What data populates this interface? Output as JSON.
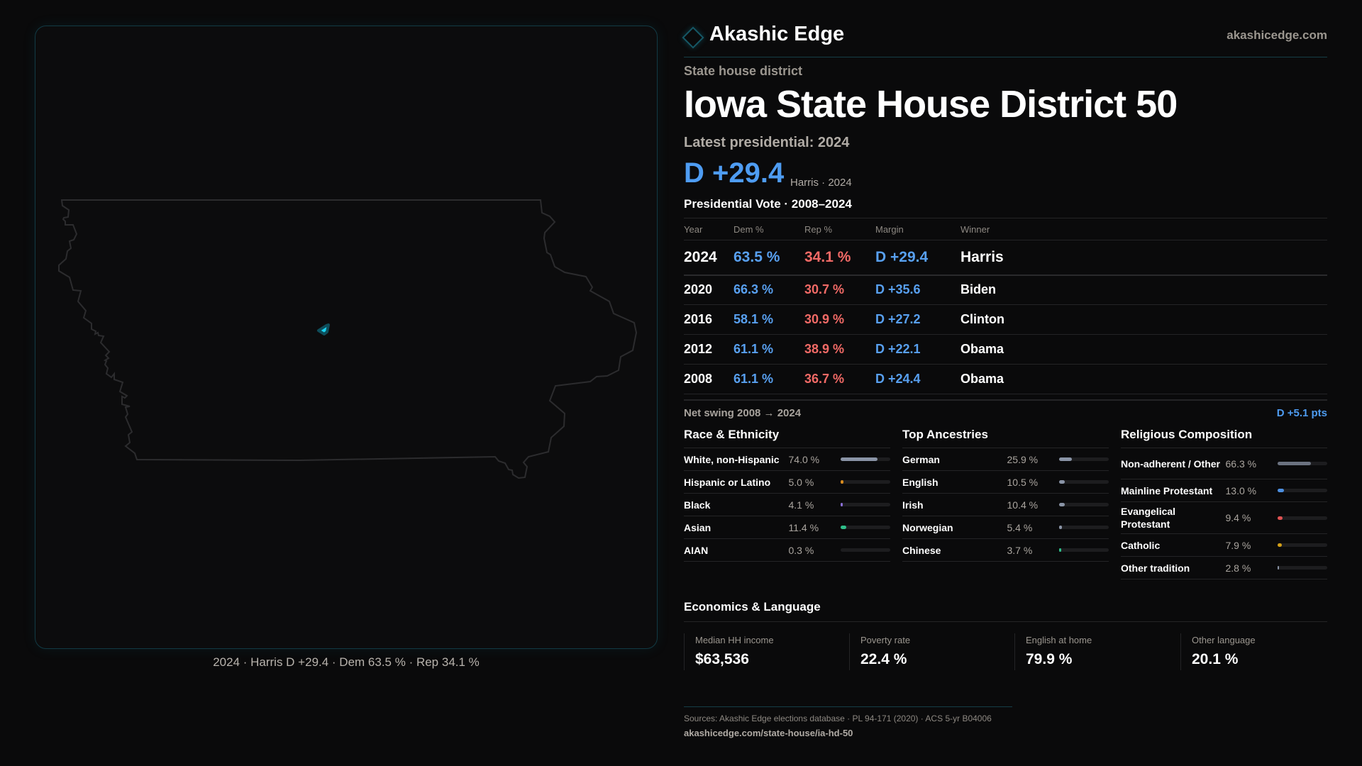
{
  "brand": {
    "name": "Akashic Edge",
    "site": "akashicedge.com",
    "accent": "#155866"
  },
  "header": {
    "kicker": "State house district",
    "title": "Iowa State House District 50",
    "latest": "Latest presidential: 2024",
    "margin": "D +29.4",
    "margin_sub": "Harris · 2024"
  },
  "map": {
    "caption": "2024 · Harris D +29.4 · Dem 63.5 % · Rep 34.1 %",
    "highlight_color": "#1ad3f0"
  },
  "presidential": {
    "title": "Presidential Vote · 2008–2024",
    "columns": [
      "Year",
      "Dem %",
      "Rep %",
      "Margin",
      "Winner"
    ],
    "rows": [
      {
        "year": "2024",
        "dem": "63.5 %",
        "rep": "34.1 %",
        "margin": "D +29.4",
        "winner": "Harris"
      },
      {
        "year": "2020",
        "dem": "66.3 %",
        "rep": "30.7 %",
        "margin": "D +35.6",
        "winner": "Biden"
      },
      {
        "year": "2016",
        "dem": "58.1 %",
        "rep": "30.9 %",
        "margin": "D +27.2",
        "winner": "Clinton"
      },
      {
        "year": "2012",
        "dem": "61.1 %",
        "rep": "38.9 %",
        "margin": "D +22.1",
        "winner": "Obama"
      },
      {
        "year": "2008",
        "dem": "61.1 %",
        "rep": "36.7 %",
        "margin": "D +24.4",
        "winner": "Obama"
      }
    ],
    "swing_label": "Net swing 2008 → 2024",
    "swing_value": "D +5.1 pts"
  },
  "colors": {
    "dem": "#58a0f0",
    "rep": "#f16a66"
  },
  "sections": [
    {
      "title": "Race & Ethnicity",
      "items": [
        {
          "label": "White, non-Hispanic",
          "value": "74.0 %",
          "pct": 74.0,
          "color": "#8a94a6"
        },
        {
          "label": "Hispanic or Latino",
          "value": "5.0 %",
          "pct": 5.0,
          "color": "#d98c1f"
        },
        {
          "label": "Black",
          "value": "4.1 %",
          "pct": 4.1,
          "color": "#8b6fd6"
        },
        {
          "label": "Asian",
          "value": "11.4 %",
          "pct": 11.4,
          "color": "#2fbf8a"
        },
        {
          "label": "AIAN",
          "value": "0.3 %",
          "pct": 0.3,
          "color": "#8a94a6"
        }
      ]
    },
    {
      "title": "Top Ancestries",
      "items": [
        {
          "label": "German",
          "value": "25.9 %",
          "pct": 25.9,
          "color": "#8a94a6"
        },
        {
          "label": "English",
          "value": "10.5 %",
          "pct": 10.5,
          "color": "#8a94a6"
        },
        {
          "label": "Irish",
          "value": "10.4 %",
          "pct": 10.4,
          "color": "#8a94a6"
        },
        {
          "label": "Norwegian",
          "value": "5.4 %",
          "pct": 5.4,
          "color": "#8a94a6"
        },
        {
          "label": "Chinese",
          "value": "3.7 %",
          "pct": 3.7,
          "color": "#2fbf8a"
        }
      ]
    },
    {
      "title": "Religious Composition",
      "items": [
        {
          "label": "Non-adherent / Other",
          "value": "66.3 %",
          "pct": 66.3,
          "color": "#6b7280"
        },
        {
          "label": "Mainline Protestant",
          "value": "13.0 %",
          "pct": 13.0,
          "color": "#4c8fe0"
        },
        {
          "label": "Evangelical Protestant",
          "value": "9.4 %",
          "pct": 9.4,
          "color": "#e05252"
        },
        {
          "label": "Catholic",
          "value": "7.9 %",
          "pct": 7.9,
          "color": "#d4a017"
        },
        {
          "label": "Other tradition",
          "value": "2.8 %",
          "pct": 2.8,
          "color": "#8a94a6"
        }
      ]
    }
  ],
  "economics": {
    "title": "Economics & Language",
    "cards": [
      {
        "label": "Median HH income",
        "value": "$63,536"
      },
      {
        "label": "Poverty rate",
        "value": "22.4 %"
      },
      {
        "label": "English at home",
        "value": "79.9 %"
      },
      {
        "label": "Other language",
        "value": "20.1 %"
      }
    ]
  },
  "footer": {
    "sources": "Sources: Akashic Edge elections database · PL 94-171 (2020) · ACS 5-yr B04006",
    "url": "akashicedge.com/state-house/ia-hd-50"
  }
}
